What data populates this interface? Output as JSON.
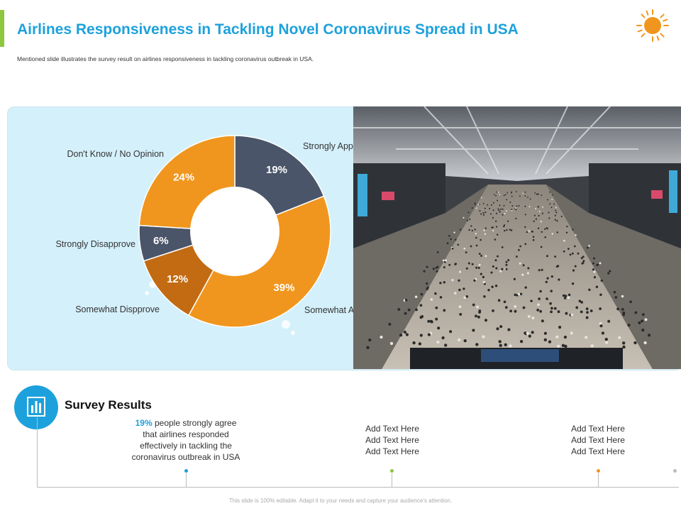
{
  "header": {
    "title": "Airlines Responsiveness in Tackling Novel Coronavirus Spread in USA",
    "subtitle": "Mentioned slide illustrates the survey result on airlines responsiveness in tackling coronavirus outbreak in USA."
  },
  "colors": {
    "title_blue": "#1da1dc",
    "accent_green": "#8dc63f",
    "orange": "#f0961e",
    "slate": "#4a5569",
    "brown": "#c26b12",
    "panel_bg": "#d4f0fb"
  },
  "chart_data": {
    "type": "pie",
    "variant": "donut",
    "title": "",
    "slices": [
      {
        "label": "Strongly Approve",
        "value": 19,
        "display": "19%",
        "color": "#4a5569"
      },
      {
        "label": "Somewhat Approve",
        "value": 39,
        "display": "39%",
        "color": "#f0961e"
      },
      {
        "label": "Somewhat Dispprove",
        "value": 12,
        "display": "12%",
        "color": "#c26b12"
      },
      {
        "label": "Strongly Disapprove",
        "value": 6,
        "display": "6%",
        "color": "#4a5569"
      },
      {
        "label": "Don't Know / No Opinion",
        "value": 24,
        "display": "24%",
        "color": "#f0961e"
      }
    ]
  },
  "survey": {
    "title": "Survey Results",
    "columns": [
      {
        "highlight": "19%",
        "lines": [
          "people strongly agree",
          "that airlines responded",
          "effectively  in tackling the",
          "coronavirus  outbreak in USA"
        ]
      },
      {
        "lines": [
          "Add Text Here",
          "Add Text Here",
          "Add Text Here"
        ]
      },
      {
        "lines": [
          "Add Text Here",
          "Add Text Here",
          "Add Text Here"
        ]
      }
    ]
  },
  "footer": "This slide is 100% editable. Adapt it to your needs and capture your audience's attention."
}
